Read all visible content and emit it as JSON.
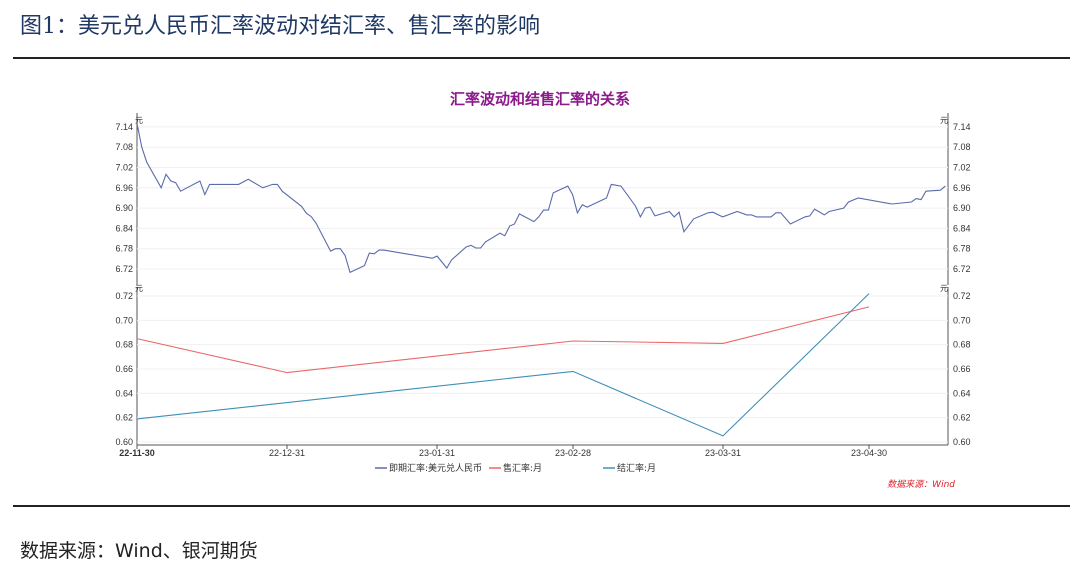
{
  "figure_title": "图1：美元兑人民币汇率波动对结汇率、售汇率的影响",
  "source_text": "数据来源：Wind、银河期货",
  "chart_data": [
    {
      "type": "line",
      "title": "汇率波动和结售汇率的关系",
      "title_color": "#8b1a8b",
      "ylabel": "元",
      "ylim": [
        6.7,
        7.16
      ],
      "yticks": [
        "6.72",
        "6.78",
        "6.84",
        "6.90",
        "6.96",
        "7.02",
        "7.08",
        "7.14"
      ],
      "x_unit": "days since 2022-11-30",
      "series": [
        {
          "name": "即期汇率:美元兑人民币",
          "color": "#5b6bab",
          "points": [
            [
              0,
              7.15
            ],
            [
              1,
              7.08
            ],
            [
              2,
              7.036
            ],
            [
              5,
              6.96
            ],
            [
              6,
              7.0
            ],
            [
              7,
              6.98
            ],
            [
              8,
              6.975
            ],
            [
              9,
              6.95
            ],
            [
              13,
              6.98
            ],
            [
              14,
              6.94
            ],
            [
              15,
              6.97
            ],
            [
              16,
              6.97
            ],
            [
              19,
              6.97
            ],
            [
              21,
              6.97
            ],
            [
              23,
              6.985
            ],
            [
              26,
              6.96
            ],
            [
              28,
              6.97
            ],
            [
              29,
              6.97
            ],
            [
              30,
              6.95
            ],
            [
              34,
              6.905
            ],
            [
              35,
              6.885
            ],
            [
              36,
              6.875
            ],
            [
              37,
              6.855
            ],
            [
              40,
              6.773
            ],
            [
              41,
              6.78
            ],
            [
              42,
              6.78
            ],
            [
              43,
              6.76
            ],
            [
              44,
              6.71
            ],
            [
              47,
              6.73
            ],
            [
              48,
              6.767
            ],
            [
              49,
              6.765
            ],
            [
              50,
              6.776
            ],
            [
              51,
              6.776
            ],
            [
              61,
              6.752
            ],
            [
              62,
              6.758
            ],
            [
              64,
              6.723
            ],
            [
              65,
              6.747
            ],
            [
              68,
              6.785
            ],
            [
              69,
              6.79
            ],
            [
              70,
              6.782
            ],
            [
              71,
              6.782
            ],
            [
              72,
              6.8
            ],
            [
              75,
              6.826
            ],
            [
              76,
              6.818
            ],
            [
              77,
              6.847
            ],
            [
              78,
              6.853
            ],
            [
              79,
              6.883
            ],
            [
              82,
              6.86
            ],
            [
              83,
              6.874
            ],
            [
              84,
              6.894
            ],
            [
              85,
              6.894
            ],
            [
              86,
              6.945
            ],
            [
              89,
              6.965
            ],
            [
              90,
              6.94
            ],
            [
              91,
              6.886
            ],
            [
              92,
              6.91
            ],
            [
              93,
              6.903
            ],
            [
              97,
              6.93
            ],
            [
              98,
              6.97
            ],
            [
              100,
              6.965
            ],
            [
              103,
              6.906
            ],
            [
              104,
              6.874
            ],
            [
              105,
              6.9
            ],
            [
              106,
              6.903
            ],
            [
              107,
              6.877
            ],
            [
              110,
              6.89
            ],
            [
              111,
              6.874
            ],
            [
              112,
              6.888
            ],
            [
              113,
              6.83
            ],
            [
              115,
              6.868
            ],
            [
              118,
              6.886
            ],
            [
              119,
              6.888
            ],
            [
              121,
              6.874
            ],
            [
              124,
              6.89
            ],
            [
              126,
              6.88
            ],
            [
              127,
              6.88
            ],
            [
              128,
              6.874
            ],
            [
              131,
              6.874
            ],
            [
              132,
              6.886
            ],
            [
              133,
              6.886
            ],
            [
              135,
              6.853
            ],
            [
              138,
              6.874
            ],
            [
              139,
              6.877
            ],
            [
              140,
              6.897
            ],
            [
              142,
              6.88
            ],
            [
              143,
              6.89
            ],
            [
              146,
              6.9
            ],
            [
              147,
              6.918
            ],
            [
              149,
              6.93
            ],
            [
              156,
              6.912
            ],
            [
              160,
              6.918
            ],
            [
              161,
              6.928
            ],
            [
              162,
              6.925
            ],
            [
              163,
              6.95
            ],
            [
              166,
              6.953
            ],
            [
              167,
              6.965
            ]
          ]
        }
      ]
    },
    {
      "type": "line",
      "ylabel": "元",
      "ylim": [
        0.6,
        0.725
      ],
      "yticks": [
        "0.60",
        "0.62",
        "0.64",
        "0.66",
        "0.68",
        "0.70",
        "0.72"
      ],
      "categories": [
        "22-11-30",
        "22-12-31",
        "23-01-31",
        "23-02-28",
        "23-03-31",
        "23-04-30"
      ],
      "series": [
        {
          "name": "售汇率:月",
          "color": "#e8686b",
          "values": [
            0.685,
            0.657,
            null,
            0.683,
            0.681,
            0.711
          ]
        },
        {
          "name": "结汇率:月",
          "color": "#3f8fb8",
          "values": [
            0.619,
            null,
            null,
            0.658,
            0.605,
            0.722
          ]
        }
      ],
      "legend_position": "bottom",
      "note": "数据来源：Wind",
      "note_color": "#e0202a"
    }
  ]
}
